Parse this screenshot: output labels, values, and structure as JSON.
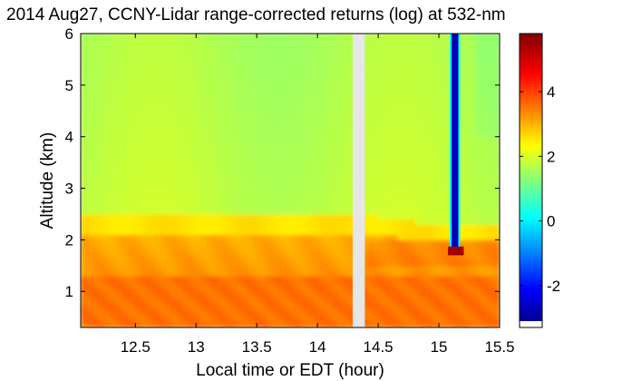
{
  "chart_data": {
    "type": "heatmap",
    "title": "2014 Aug27, CCNY-Lidar range-corrected returns (log) at 532-nm",
    "xlabel": "Local time or EDT (hour)",
    "ylabel": "Altitude (km)",
    "xlim": [
      12.05,
      15.5
    ],
    "ylim": [
      0.3,
      6.0
    ],
    "x_ticks": [
      12.5,
      13,
      13.5,
      14,
      14.5,
      15,
      15.5
    ],
    "x_tick_labels": [
      "12.5",
      "13",
      "13.5",
      "14",
      "14.5",
      "15",
      "15.5"
    ],
    "y_ticks": [
      1,
      2,
      3,
      4,
      5,
      6
    ],
    "y_tick_labels": [
      "1",
      "2",
      "3",
      "4",
      "5",
      "6"
    ],
    "colorbar": {
      "colormap": "jet",
      "clim": [
        -3.1,
        5.8
      ],
      "ticks": [
        -2,
        0,
        2,
        4
      ],
      "tick_labels": [
        "-2",
        "0",
        "2",
        "4"
      ]
    },
    "data_gap": {
      "x_start": 14.29,
      "x_end": 14.39
    },
    "boundary_layer_top_km": [
      {
        "x": 12.05,
        "y": 2.35
      },
      {
        "x": 13.0,
        "y": 2.3
      },
      {
        "x": 14.0,
        "y": 2.35
      },
      {
        "x": 14.5,
        "y": 2.3
      },
      {
        "x": 15.0,
        "y": 2.15
      },
      {
        "x": 15.5,
        "y": 2.2
      }
    ],
    "field_values": {
      "free_troposphere": 1.9,
      "upper_boundary_layer": 2.7,
      "lower_boundary_layer": 3.4,
      "near_surface": 3.7
    },
    "cloud": {
      "x_start": 15.09,
      "x_end": 15.2,
      "base_km": 1.75,
      "base_value": 5.5,
      "above_cloud_value": -2.6
    }
  }
}
